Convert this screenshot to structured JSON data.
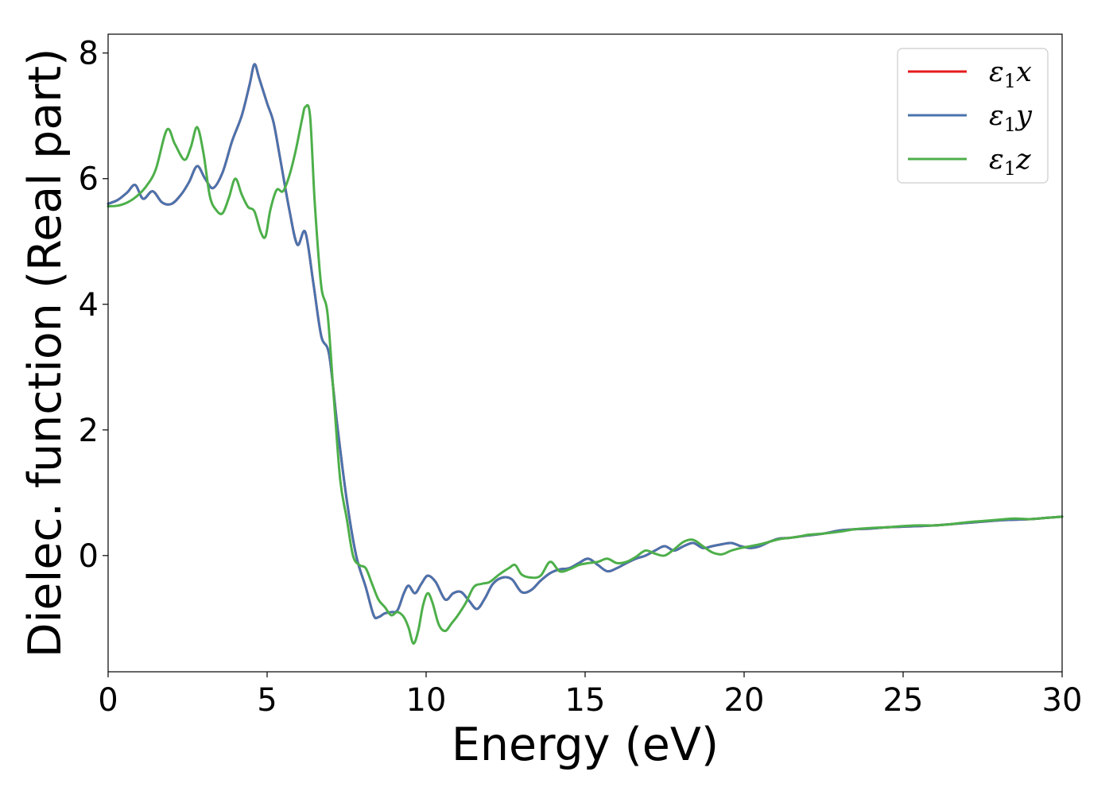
{
  "chart_data": {
    "type": "line",
    "title": "",
    "xlabel": "Energy (eV)",
    "ylabel": "Dielec. function (Real part)",
    "xlim": [
      0,
      30
    ],
    "ylim": [
      -1.85,
      8.3
    ],
    "xticks": [
      0,
      5,
      10,
      15,
      20,
      25,
      30
    ],
    "yticks": [
      0,
      2,
      4,
      6,
      8
    ],
    "grid": false,
    "legend_position": "top-right",
    "series": [
      {
        "name": "ε1x",
        "legend_main": "ε",
        "legend_sub": "1",
        "legend_tail": "x",
        "color": "#e41a1c",
        "x": [
          0,
          0.3,
          0.6,
          0.85,
          1.1,
          1.4,
          1.7,
          2.0,
          2.3,
          2.55,
          2.8,
          3.05,
          3.3,
          3.6,
          3.9,
          4.2,
          4.45,
          4.6,
          4.75,
          5.0,
          5.2,
          5.4,
          5.7,
          5.95,
          6.2,
          6.45,
          6.7,
          6.95,
          7.2,
          7.5,
          7.8,
          8.1,
          8.35,
          8.5,
          8.7,
          8.9,
          9.1,
          9.3,
          9.45,
          9.65,
          9.85,
          10.05,
          10.3,
          10.6,
          10.85,
          11.1,
          11.35,
          11.6,
          11.85,
          12.1,
          12.4,
          12.7,
          13.0,
          13.3,
          13.6,
          13.9,
          14.2,
          14.5,
          14.8,
          15.1,
          15.4,
          15.7,
          16.0,
          16.3,
          16.6,
          16.9,
          17.2,
          17.5,
          17.8,
          18.1,
          18.4,
          18.7,
          19.0,
          19.3,
          19.6,
          19.9,
          20.2,
          20.5,
          20.8,
          21.1,
          21.4,
          21.7,
          22.0,
          22.5,
          23.0,
          23.5,
          24.0,
          24.5,
          25.0,
          25.5,
          26.0,
          26.5,
          27.0,
          27.5,
          28.0,
          28.5,
          29.0,
          29.5,
          30.0
        ],
        "y": [
          5.6,
          5.66,
          5.78,
          5.9,
          5.68,
          5.8,
          5.62,
          5.6,
          5.75,
          5.95,
          6.2,
          6.0,
          5.85,
          6.1,
          6.6,
          7.0,
          7.5,
          7.82,
          7.6,
          7.2,
          6.9,
          6.35,
          5.5,
          4.95,
          5.15,
          4.35,
          3.5,
          3.2,
          2.1,
          0.9,
          0.0,
          -0.5,
          -0.95,
          -0.98,
          -0.92,
          -0.9,
          -0.87,
          -0.6,
          -0.48,
          -0.6,
          -0.45,
          -0.32,
          -0.42,
          -0.7,
          -0.6,
          -0.58,
          -0.72,
          -0.85,
          -0.68,
          -0.45,
          -0.35,
          -0.38,
          -0.58,
          -0.55,
          -0.4,
          -0.28,
          -0.22,
          -0.2,
          -0.12,
          -0.05,
          -0.15,
          -0.25,
          -0.2,
          -0.12,
          -0.05,
          0.0,
          0.08,
          0.15,
          0.08,
          0.15,
          0.2,
          0.12,
          0.15,
          0.18,
          0.2,
          0.15,
          0.12,
          0.15,
          0.22,
          0.27,
          0.28,
          0.3,
          0.32,
          0.35,
          0.4,
          0.42,
          0.43,
          0.45,
          0.46,
          0.47,
          0.48,
          0.5,
          0.52,
          0.54,
          0.56,
          0.57,
          0.58,
          0.6,
          0.62
        ]
      },
      {
        "name": "ε1y",
        "legend_main": "ε",
        "legend_sub": "1",
        "legend_tail": "y",
        "color": "#4a73ad",
        "x": [
          0,
          0.3,
          0.6,
          0.85,
          1.1,
          1.4,
          1.7,
          2.0,
          2.3,
          2.55,
          2.8,
          3.05,
          3.3,
          3.6,
          3.9,
          4.2,
          4.45,
          4.6,
          4.75,
          5.0,
          5.2,
          5.4,
          5.7,
          5.95,
          6.2,
          6.45,
          6.7,
          6.95,
          7.2,
          7.5,
          7.8,
          8.1,
          8.35,
          8.5,
          8.7,
          8.9,
          9.1,
          9.3,
          9.45,
          9.65,
          9.85,
          10.05,
          10.3,
          10.6,
          10.85,
          11.1,
          11.35,
          11.6,
          11.85,
          12.1,
          12.4,
          12.7,
          13.0,
          13.3,
          13.6,
          13.9,
          14.2,
          14.5,
          14.8,
          15.1,
          15.4,
          15.7,
          16.0,
          16.3,
          16.6,
          16.9,
          17.2,
          17.5,
          17.8,
          18.1,
          18.4,
          18.7,
          19.0,
          19.3,
          19.6,
          19.9,
          20.2,
          20.5,
          20.8,
          21.1,
          21.4,
          21.7,
          22.0,
          22.5,
          23.0,
          23.5,
          24.0,
          24.5,
          25.0,
          25.5,
          26.0,
          26.5,
          27.0,
          27.5,
          28.0,
          28.5,
          29.0,
          29.5,
          30.0
        ],
        "y": [
          5.6,
          5.66,
          5.78,
          5.9,
          5.68,
          5.8,
          5.62,
          5.6,
          5.75,
          5.95,
          6.2,
          6.0,
          5.85,
          6.1,
          6.6,
          7.0,
          7.5,
          7.82,
          7.6,
          7.2,
          6.9,
          6.35,
          5.5,
          4.95,
          5.15,
          4.35,
          3.5,
          3.2,
          2.1,
          0.9,
          0.0,
          -0.5,
          -0.95,
          -0.98,
          -0.92,
          -0.9,
          -0.87,
          -0.6,
          -0.48,
          -0.6,
          -0.45,
          -0.32,
          -0.42,
          -0.7,
          -0.6,
          -0.58,
          -0.72,
          -0.85,
          -0.68,
          -0.45,
          -0.35,
          -0.38,
          -0.58,
          -0.55,
          -0.4,
          -0.28,
          -0.22,
          -0.2,
          -0.12,
          -0.05,
          -0.15,
          -0.25,
          -0.2,
          -0.12,
          -0.05,
          0.0,
          0.08,
          0.15,
          0.08,
          0.15,
          0.2,
          0.12,
          0.15,
          0.18,
          0.2,
          0.15,
          0.12,
          0.15,
          0.22,
          0.27,
          0.28,
          0.3,
          0.32,
          0.35,
          0.4,
          0.42,
          0.43,
          0.45,
          0.46,
          0.47,
          0.48,
          0.5,
          0.52,
          0.54,
          0.56,
          0.57,
          0.58,
          0.6,
          0.62
        ]
      },
      {
        "name": "ε1z",
        "legend_main": "ε",
        "legend_sub": "1",
        "legend_tail": "z",
        "color": "#4daf4a",
        "x": [
          0,
          0.3,
          0.6,
          0.9,
          1.2,
          1.5,
          1.85,
          2.1,
          2.4,
          2.6,
          2.8,
          3.0,
          3.2,
          3.4,
          3.6,
          3.8,
          4.0,
          4.2,
          4.4,
          4.6,
          4.8,
          4.95,
          5.1,
          5.3,
          5.5,
          5.7,
          5.9,
          6.1,
          6.2,
          6.35,
          6.5,
          6.7,
          6.9,
          7.1,
          7.3,
          7.5,
          7.7,
          7.9,
          8.1,
          8.3,
          8.5,
          8.7,
          8.9,
          9.1,
          9.3,
          9.45,
          9.6,
          9.75,
          9.9,
          10.05,
          10.2,
          10.4,
          10.6,
          10.8,
          11.0,
          11.25,
          11.5,
          11.75,
          12.0,
          12.3,
          12.6,
          12.8,
          13.0,
          13.3,
          13.6,
          13.9,
          14.2,
          14.5,
          14.8,
          15.1,
          15.4,
          15.7,
          16.0,
          16.3,
          16.6,
          16.9,
          17.2,
          17.5,
          17.8,
          18.1,
          18.4,
          18.7,
          19.0,
          19.3,
          19.6,
          19.9,
          20.2,
          20.5,
          20.8,
          21.1,
          21.4,
          21.7,
          22.0,
          22.5,
          23.0,
          23.5,
          24.0,
          24.5,
          25.0,
          25.5,
          26.0,
          26.5,
          27.0,
          27.5,
          28.0,
          28.5,
          29.0,
          29.5,
          30.0
        ],
        "y": [
          5.56,
          5.57,
          5.62,
          5.72,
          5.88,
          6.15,
          6.78,
          6.55,
          6.3,
          6.5,
          6.82,
          6.4,
          5.72,
          5.5,
          5.45,
          5.7,
          6.0,
          5.75,
          5.55,
          5.48,
          5.15,
          5.08,
          5.5,
          5.82,
          5.8,
          6.05,
          6.45,
          6.95,
          7.14,
          7.0,
          5.6,
          4.3,
          3.85,
          2.5,
          1.2,
          0.6,
          0.0,
          -0.15,
          -0.2,
          -0.45,
          -0.7,
          -0.82,
          -0.95,
          -0.9,
          -0.98,
          -1.15,
          -1.4,
          -1.2,
          -0.8,
          -0.6,
          -0.75,
          -1.1,
          -1.2,
          -1.08,
          -0.95,
          -0.75,
          -0.5,
          -0.45,
          -0.42,
          -0.3,
          -0.2,
          -0.15,
          -0.3,
          -0.35,
          -0.32,
          -0.1,
          -0.25,
          -0.22,
          -0.15,
          -0.12,
          -0.1,
          -0.05,
          -0.12,
          -0.1,
          -0.02,
          0.08,
          0.03,
          0.0,
          0.1,
          0.22,
          0.25,
          0.15,
          0.05,
          0.02,
          0.08,
          0.12,
          0.15,
          0.18,
          0.22,
          0.26,
          0.28,
          0.3,
          0.33,
          0.35,
          0.38,
          0.42,
          0.44,
          0.45,
          0.47,
          0.48,
          0.48,
          0.5,
          0.53,
          0.55,
          0.57,
          0.59,
          0.58,
          0.6,
          0.62
        ]
      }
    ]
  }
}
